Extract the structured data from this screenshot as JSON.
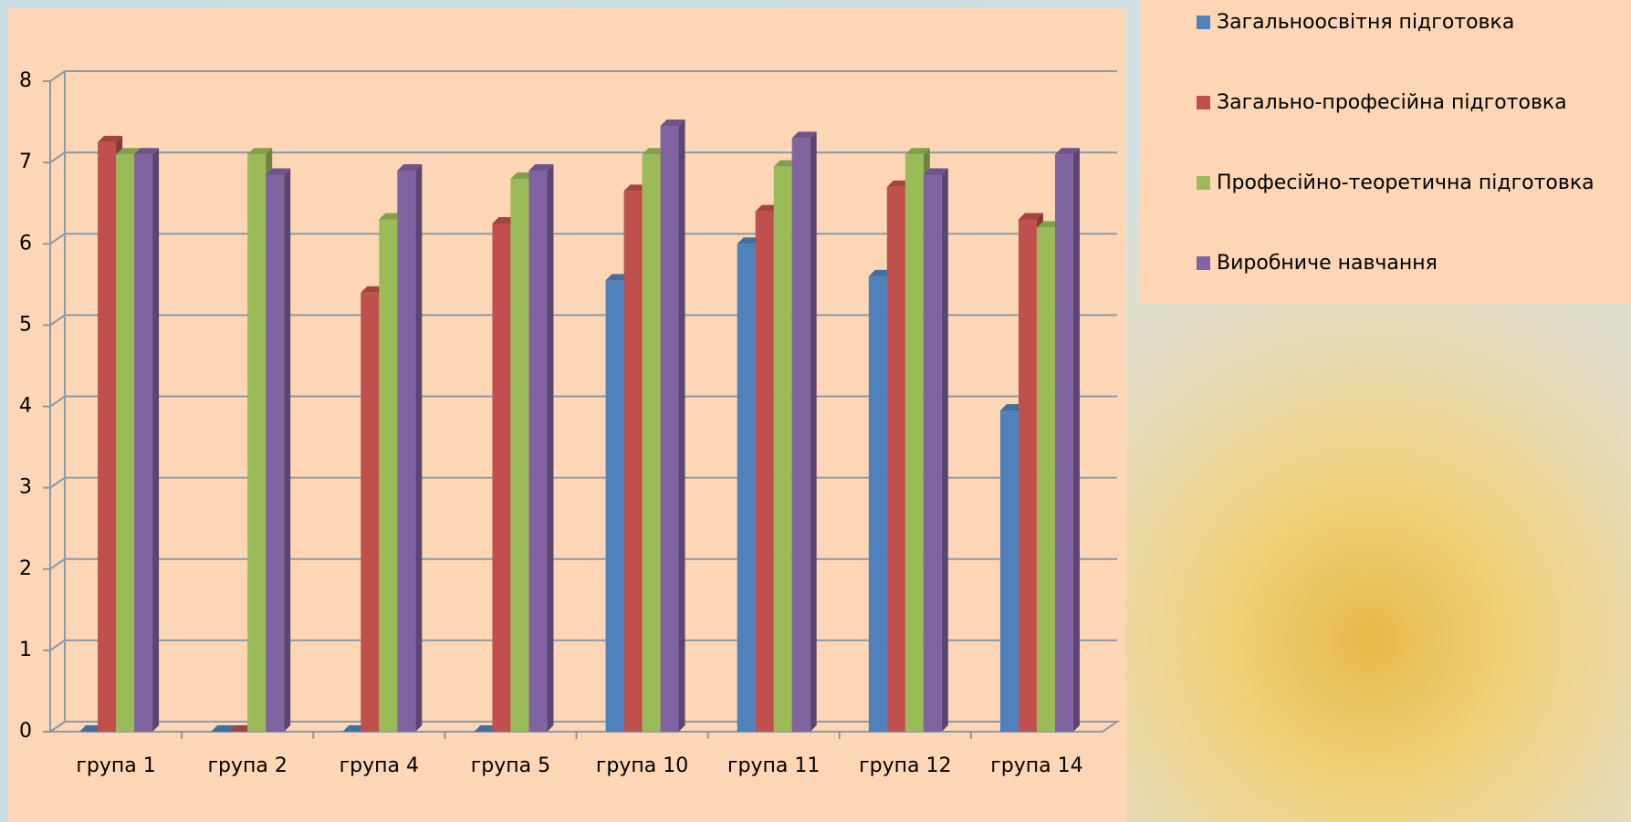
{
  "chart_data": {
    "type": "bar",
    "categories": [
      "група 1",
      "група 2",
      "група 4",
      "група 5",
      "група 10",
      "група 11",
      "група 12",
      "група 14"
    ],
    "series": [
      {
        "name": "Загальноосвітня підготовка",
        "color": "#4f81bd",
        "values": [
          0,
          0,
          0,
          0,
          5.55,
          6.0,
          5.6,
          3.95
        ]
      },
      {
        "name": "Загально-професійна підготовка",
        "color": "#c0504d",
        "values": [
          7.25,
          0,
          5.4,
          6.25,
          6.65,
          6.4,
          6.7,
          6.3
        ]
      },
      {
        "name": "Професійно-теоретична підготовка",
        "color": "#9bbb59",
        "values": [
          7.1,
          7.1,
          6.3,
          6.8,
          7.1,
          6.95,
          7.1,
          6.2
        ]
      },
      {
        "name": "Виробниче навчання",
        "color": "#8064a2",
        "values": [
          7.1,
          6.85,
          6.9,
          6.9,
          7.45,
          7.3,
          6.85,
          7.1
        ]
      }
    ],
    "ylim": [
      0,
      8
    ],
    "yticks": [
      0,
      1,
      2,
      3,
      4,
      5,
      6,
      7,
      8
    ],
    "grid": true,
    "legend": "right"
  }
}
